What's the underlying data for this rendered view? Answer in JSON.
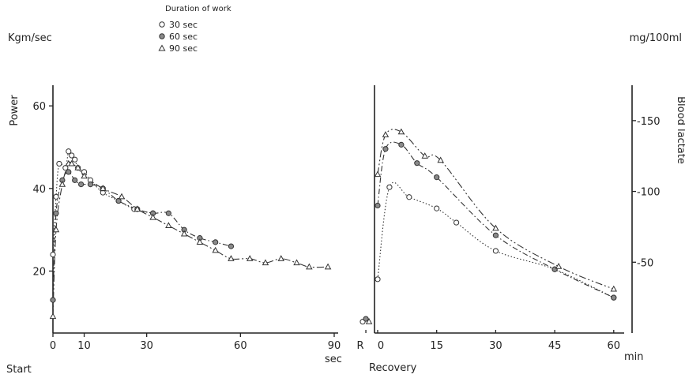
{
  "legend": {
    "title": "Duration of work",
    "items": [
      {
        "marker": "circle-open",
        "label": "30 sec"
      },
      {
        "marker": "circle-filled",
        "label": "60 sec"
      },
      {
        "marker": "triangle-open",
        "label": "90 sec"
      }
    ]
  },
  "chart_data": [
    {
      "type": "scatter",
      "title": "",
      "unit_label": "Kgm/sec",
      "ylabel": "Power",
      "xlabel": "sec",
      "x_start_label": "Start",
      "xlim": [
        0,
        90
      ],
      "ylim": [
        5,
        65
      ],
      "xticks": [
        0,
        10,
        30,
        60,
        90
      ],
      "yticks": [
        20,
        40,
        60
      ],
      "grid": false,
      "series": [
        {
          "name": "30 sec",
          "marker": "circle-open",
          "x": [
            0,
            1,
            2,
            4,
            5,
            6,
            7,
            8,
            10,
            12,
            16,
            21,
            26,
            32
          ],
          "y": [
            24,
            38,
            46,
            45,
            49,
            48,
            47,
            45,
            44,
            42,
            39,
            37,
            35,
            34
          ]
        },
        {
          "name": "60 sec",
          "marker": "circle-filled",
          "x": [
            0,
            1,
            3,
            5,
            7,
            9,
            12,
            16,
            21,
            27,
            32,
            37,
            42,
            47,
            52,
            57
          ],
          "y": [
            13,
            34,
            42,
            44,
            42,
            41,
            41,
            40,
            37,
            35,
            34,
            34,
            30,
            28,
            27,
            26
          ]
        },
        {
          "name": "90 sec",
          "marker": "triangle-open",
          "x": [
            0,
            1,
            3,
            5,
            6,
            8,
            10,
            16,
            22,
            27,
            32,
            37,
            42,
            47,
            52,
            57,
            63,
            68,
            73,
            78,
            82,
            88
          ],
          "y": [
            9,
            30,
            41,
            46,
            46,
            45,
            43,
            40,
            38,
            35,
            33,
            31,
            29,
            27,
            25,
            23,
            23,
            22,
            23,
            22,
            21,
            21
          ]
        }
      ]
    },
    {
      "type": "scatter",
      "title": "",
      "unit_label": "mg/100ml",
      "ylabel": "Blood lactate",
      "xlabel": "min",
      "x_start_label": "Recovery",
      "x_tick_labels": [
        "R",
        "0",
        "15",
        "30",
        "45",
        "60"
      ],
      "xlim": [
        -3,
        64
      ],
      "ylim": [
        0,
        175
      ],
      "yticks": [
        50,
        100,
        150
      ],
      "ytick_labels": [
        "-50",
        "-100",
        "-150"
      ],
      "grid": false,
      "series": [
        {
          "name": "30 sec",
          "marker": "circle-open",
          "x": [
            -3,
            0,
            3,
            8,
            15,
            20,
            30,
            45,
            60
          ],
          "y": [
            8,
            38,
            103,
            96,
            88,
            78,
            58,
            45,
            25
          ]
        },
        {
          "name": "60 sec",
          "marker": "circle-filled",
          "x": [
            -3,
            0,
            2,
            6,
            10,
            15,
            30,
            45,
            60
          ],
          "y": [
            10,
            90,
            130,
            133,
            120,
            110,
            69,
            45,
            25
          ]
        },
        {
          "name": "90 sec",
          "marker": "triangle-open",
          "x": [
            -3,
            0,
            2,
            6,
            12,
            16,
            30,
            46,
            60
          ],
          "y": [
            8,
            112,
            140,
            142,
            125,
            122,
            74,
            47,
            31
          ]
        }
      ]
    }
  ]
}
